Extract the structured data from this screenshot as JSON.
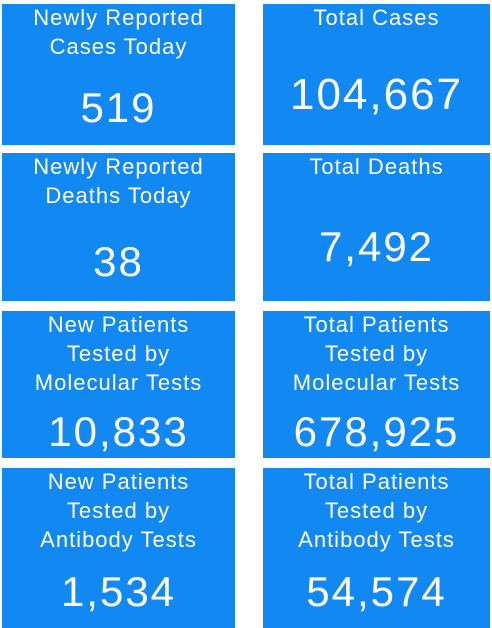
{
  "tiles": [
    {
      "label_lines": [
        "Newly Reported",
        "Cases Today"
      ],
      "value": "519"
    },
    {
      "label_lines": [
        "Total Cases"
      ],
      "value": "104,667"
    },
    {
      "label_lines": [
        "Newly Reported",
        "Deaths Today"
      ],
      "value": "38"
    },
    {
      "label_lines": [
        "Total Deaths"
      ],
      "value": "7,492"
    },
    {
      "label_lines": [
        "New Patients",
        "Tested by",
        "Molecular Tests"
      ],
      "value": "10,833"
    },
    {
      "label_lines": [
        "Total Patients",
        "Tested by",
        "Molecular Tests"
      ],
      "value": "678,925"
    },
    {
      "label_lines": [
        "New Patients",
        "Tested by",
        "Antibody Tests"
      ],
      "value": "1,534"
    },
    {
      "label_lines": [
        "Total Patients",
        "Tested by",
        "Antibody Tests"
      ],
      "value": "54,574"
    }
  ]
}
